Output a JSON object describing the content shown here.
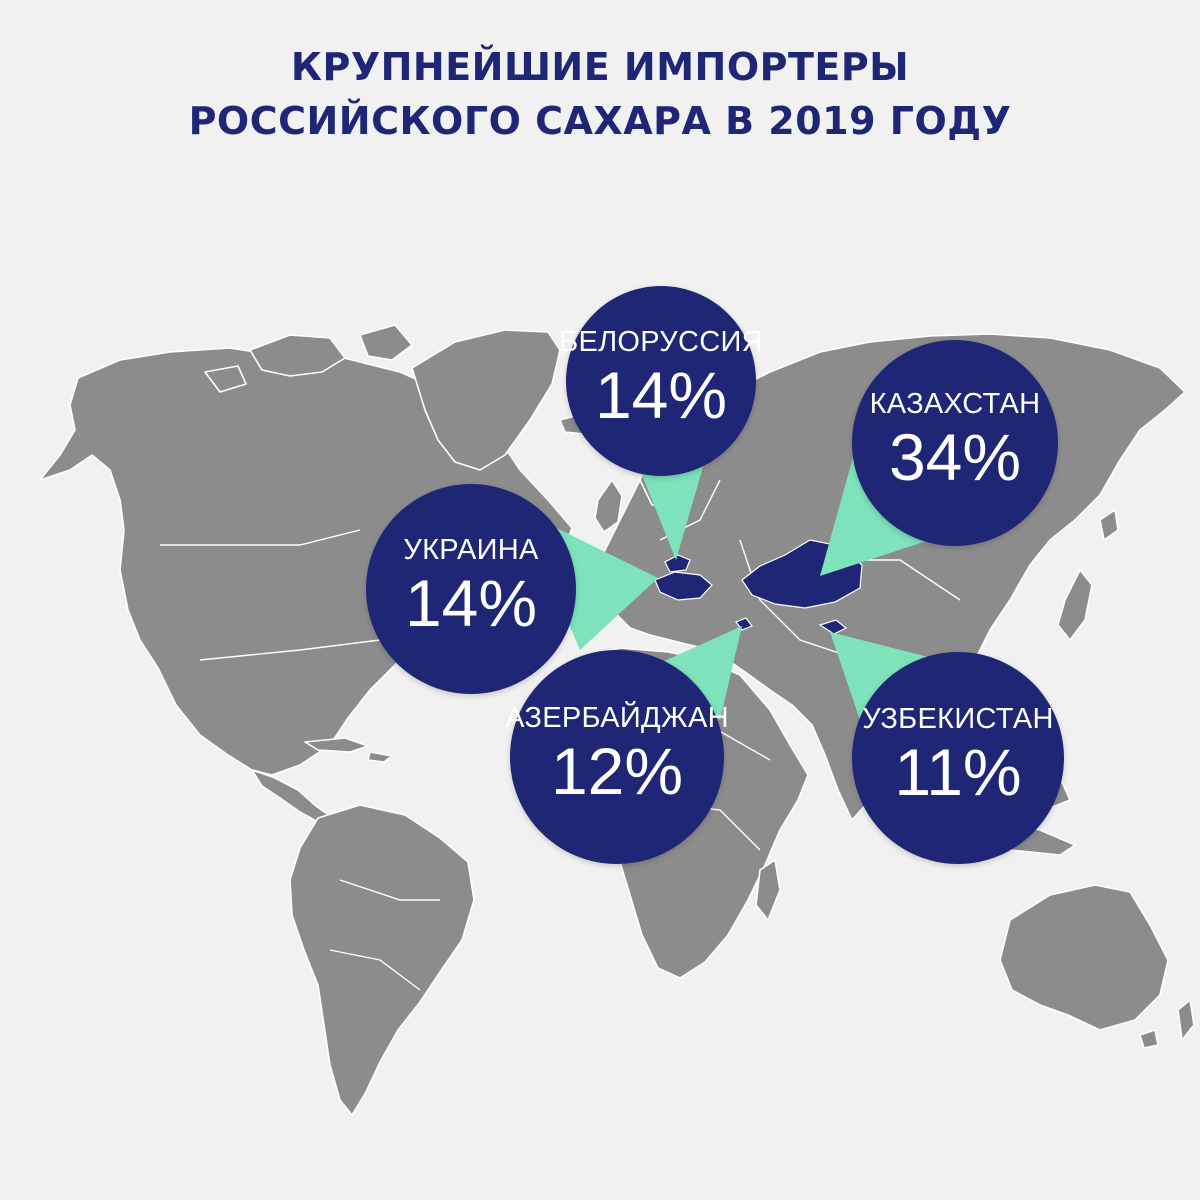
{
  "title": {
    "line1": "КРУПНЕЙШИЕ ИМПОРТЕРЫ",
    "line2": "РОССИЙСКОГО САХАРА В 2019 ГОДУ"
  },
  "colors": {
    "background": "#f1f1f1",
    "land": "#8c8c8c",
    "borders": "#ffffff",
    "highlight": "#1f2676",
    "pointer": "#7ee2bb",
    "title": "#1f2676"
  },
  "markers": [
    {
      "country": "БЕЛОРУССИЯ",
      "share": "14%"
    },
    {
      "country": "КАЗАХСТАН",
      "share": "34%"
    },
    {
      "country": "УКРАИНА",
      "share": "14%"
    },
    {
      "country": "АЗЕРБАЙДЖАН",
      "share": "12%"
    },
    {
      "country": "УЗБЕКИСТАН",
      "share": "11%"
    }
  ]
}
